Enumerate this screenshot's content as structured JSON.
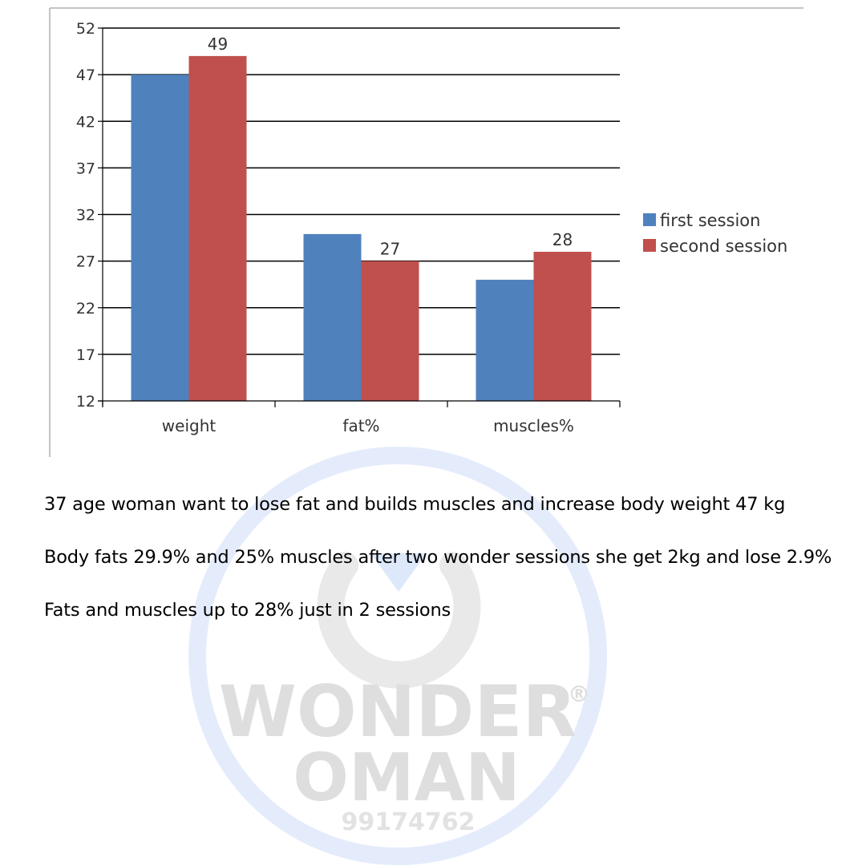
{
  "chart_data": {
    "type": "bar",
    "categories": [
      "weight",
      "fat%",
      "muscles%"
    ],
    "series": [
      {
        "name": "first session",
        "values": [
          47,
          29.9,
          25
        ],
        "color": "#4f81bd"
      },
      {
        "name": "second session",
        "values": [
          49,
          27,
          28
        ],
        "color": "#c0504d"
      }
    ],
    "data_labels": [
      {
        "series": 1,
        "category": 0,
        "text": "49"
      },
      {
        "series": 1,
        "category": 1,
        "text": "27"
      },
      {
        "series": 1,
        "category": 2,
        "text": "28"
      }
    ],
    "y_ticks": [
      12,
      17,
      22,
      27,
      32,
      37,
      42,
      47,
      52
    ],
    "ylim": [
      12,
      52
    ],
    "grid": true,
    "legend_position": "right"
  },
  "description": {
    "line1": "37 age woman want to lose fat and builds muscles and increase body weight 47 kg",
    "line2": "Body fats 29.9% and 25% muscles after two wonder sessions she get 2kg and lose 2.9%",
    "line3": "Fats and muscles up to 28% just in 2 sessions"
  },
  "watermark": {
    "brand": "WONDER",
    "registered": "®",
    "country": "OMAN",
    "phone": "99174762",
    "ring_color": "#dce7fb",
    "text_color": "#dcdcdc"
  }
}
